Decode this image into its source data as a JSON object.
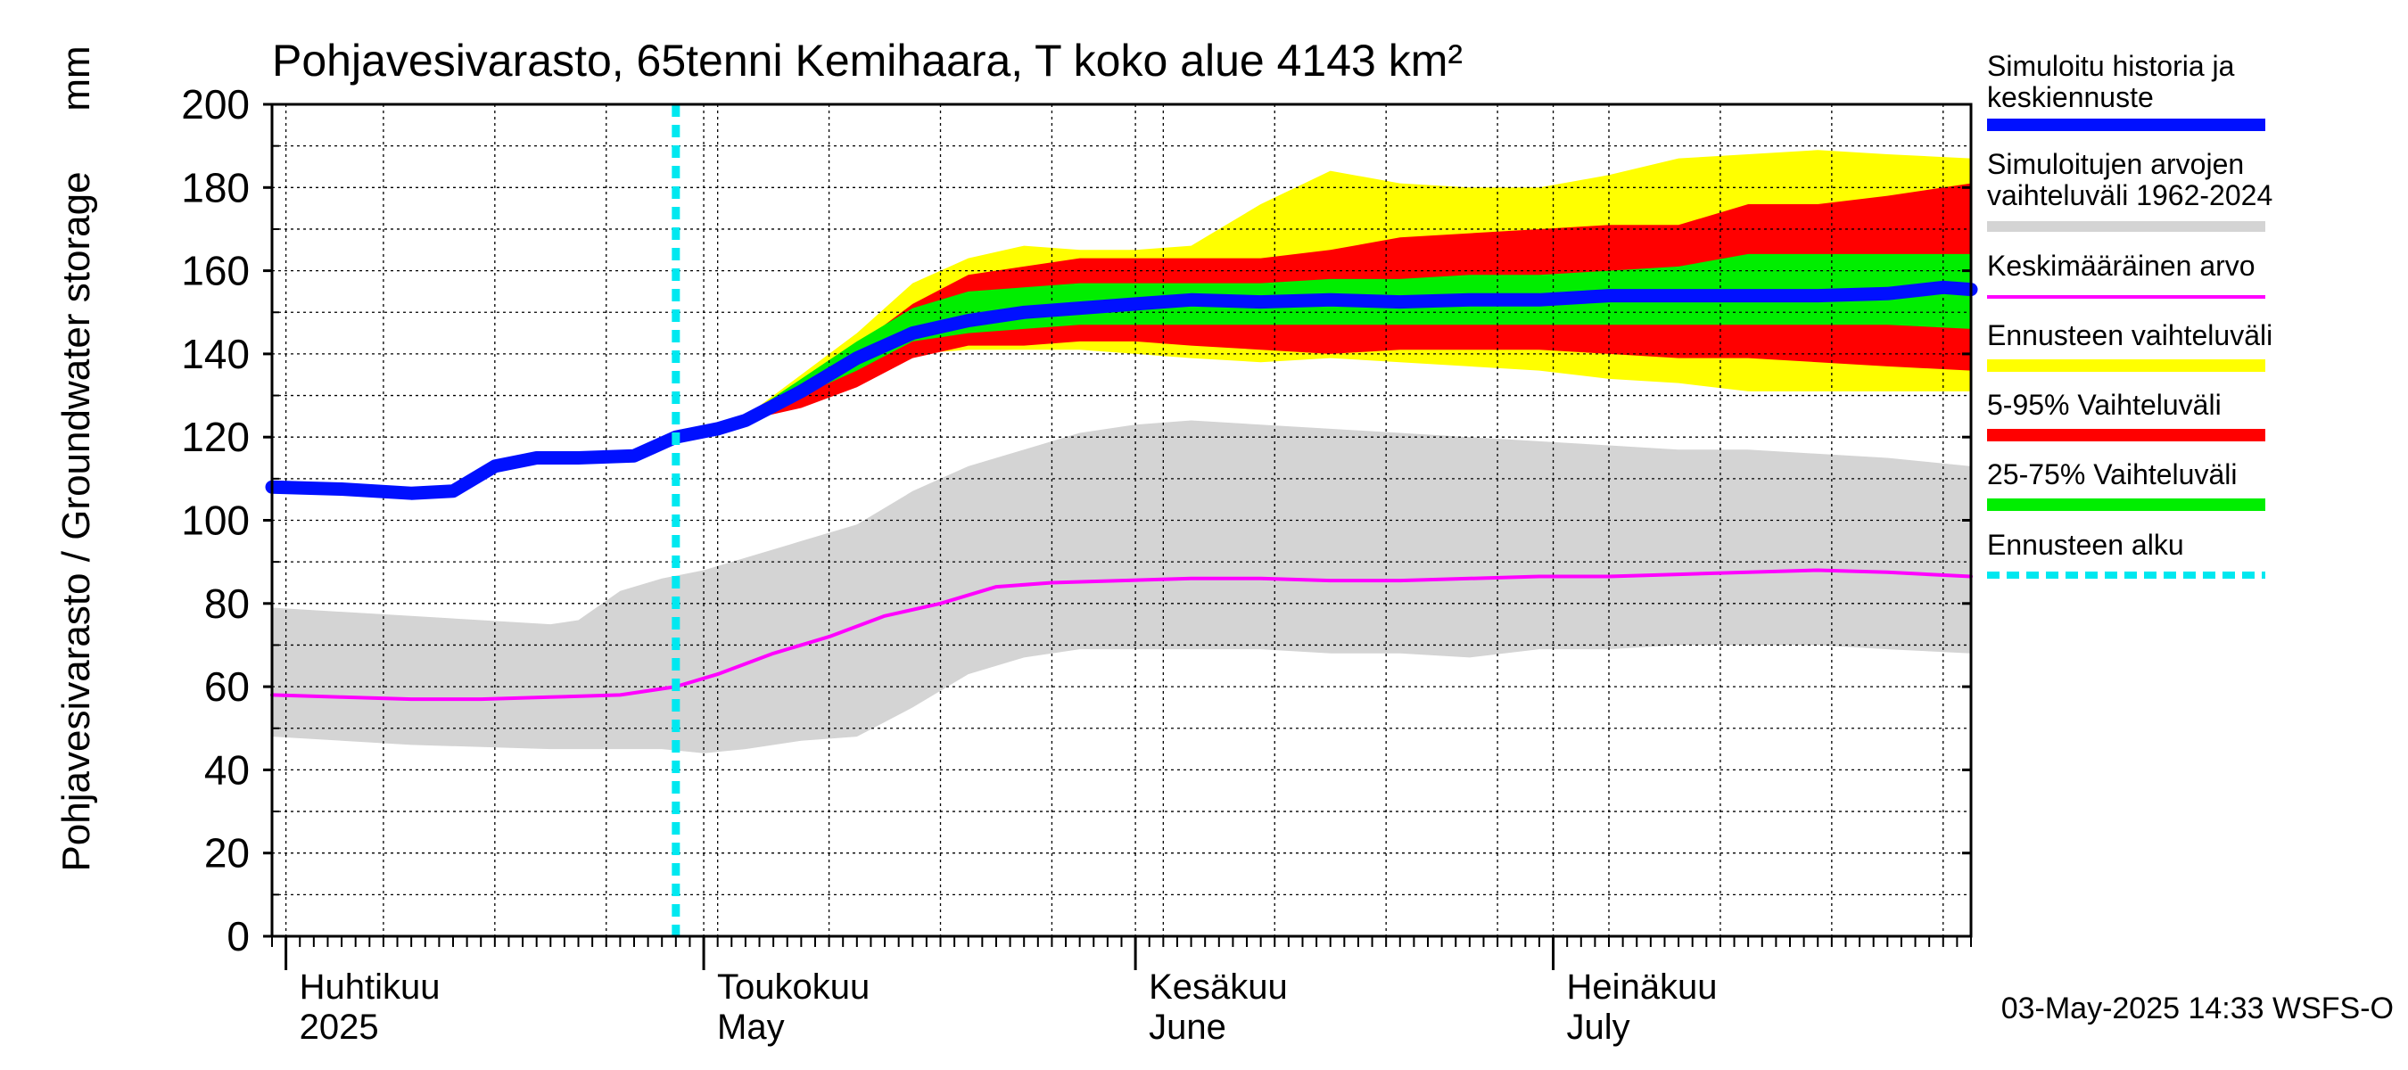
{
  "chart_data": {
    "type": "area",
    "title": "Pohjavesivarasto, 65tenni Kemihaara, T koko alue 4143 km²",
    "ylabel": "Pohjavesivarasto / Groundwater storage",
    "yunit": "mm",
    "ylim": [
      0,
      200
    ],
    "yticks": [
      0,
      20,
      40,
      60,
      80,
      100,
      120,
      140,
      160,
      180,
      200
    ],
    "xlim": [
      "2025-03-31",
      "2025-07-31"
    ],
    "month_labels": [
      {
        "date": "2025-04-01",
        "fi": "Huhtikuu",
        "en": "2025"
      },
      {
        "date": "2025-05-01",
        "fi": "Toukokuu",
        "en": "May"
      },
      {
        "date": "2025-06-01",
        "fi": "Kesäkuu",
        "en": "June"
      },
      {
        "date": "2025-07-01",
        "fi": "Heinäkuu",
        "en": "July"
      }
    ],
    "forecast_start": "2025-04-29",
    "grid": true,
    "legend_position": "right",
    "legend": [
      {
        "label": "Simuloitu historia ja keskiennuste",
        "color": "#0010ff"
      },
      {
        "label": "Simuloitujen arvojen vaihteluväli 1962-2024",
        "color": "#d4d4d4"
      },
      {
        "label": "Keskimääräinen arvo",
        "color": "#ff00ff"
      },
      {
        "label": "Ennusteen vaihteluväli",
        "color": "#ffff00"
      },
      {
        "label": "5-95% Vaihteluväli",
        "color": "#ff0000"
      },
      {
        "label": "25-75% Vaihteluväli",
        "color": "#00ee00"
      },
      {
        "label": "Ennusteen alku",
        "color": "#00e8f0"
      }
    ],
    "series": [
      {
        "name": "Simuloitujen arvojen vaihteluväli 1962-2024",
        "kind": "band",
        "color": "#d4d4d4",
        "x": [
          "2025-03-31",
          "2025-04-10",
          "2025-04-20",
          "2025-04-22",
          "2025-04-25",
          "2025-04-28",
          "2025-05-01",
          "2025-05-04",
          "2025-05-08",
          "2025-05-12",
          "2025-05-16",
          "2025-05-20",
          "2025-05-24",
          "2025-05-28",
          "2025-06-01",
          "2025-06-05",
          "2025-06-10",
          "2025-06-15",
          "2025-06-20",
          "2025-06-25",
          "2025-06-30",
          "2025-07-05",
          "2025-07-10",
          "2025-07-15",
          "2025-07-20",
          "2025-07-25",
          "2025-07-31"
        ],
        "low": [
          48,
          46,
          45,
          45,
          45,
          45,
          44,
          45,
          47,
          48,
          55,
          63,
          67,
          69,
          69,
          69,
          69,
          68,
          68,
          67,
          69,
          69,
          70,
          70,
          70,
          69,
          68
        ],
        "high": [
          79,
          77,
          75,
          76,
          83,
          86,
          88,
          91,
          95,
          99,
          107,
          113,
          117,
          121,
          123,
          124,
          123,
          122,
          121,
          120,
          119,
          118,
          117,
          117,
          116,
          115,
          113
        ]
      },
      {
        "name": "Ennusteen vaihteluväli",
        "kind": "band",
        "color": "#ffff00",
        "x": [
          "2025-05-04",
          "2025-05-08",
          "2025-05-12",
          "2025-05-16",
          "2025-05-20",
          "2025-05-24",
          "2025-05-28",
          "2025-06-01",
          "2025-06-05",
          "2025-06-10",
          "2025-06-15",
          "2025-06-20",
          "2025-06-25",
          "2025-06-30",
          "2025-07-05",
          "2025-07-10",
          "2025-07-15",
          "2025-07-20",
          "2025-07-25",
          "2025-07-31"
        ],
        "low": [
          124,
          128,
          133,
          140,
          141,
          141,
          141,
          140,
          139,
          138,
          139,
          138,
          137,
          136,
          134,
          133,
          131,
          131,
          131,
          131
        ],
        "high": [
          125,
          135,
          145,
          157,
          163,
          166,
          165,
          165,
          166,
          176,
          184,
          181,
          180,
          180,
          183,
          187,
          188,
          189,
          188,
          187
        ]
      },
      {
        "name": "5-95% Vaihteluväli",
        "kind": "band",
        "color": "#ff0000",
        "x": [
          "2025-05-04",
          "2025-05-08",
          "2025-05-12",
          "2025-05-16",
          "2025-05-20",
          "2025-05-24",
          "2025-05-28",
          "2025-06-01",
          "2025-06-05",
          "2025-06-10",
          "2025-06-15",
          "2025-06-20",
          "2025-06-25",
          "2025-06-30",
          "2025-07-05",
          "2025-07-10",
          "2025-07-15",
          "2025-07-20",
          "2025-07-25",
          "2025-07-31"
        ],
        "low": [
          124,
          127,
          132,
          139,
          142,
          142,
          143,
          143,
          142,
          141,
          140,
          141,
          141,
          141,
          140,
          139,
          139,
          138,
          137,
          136
        ],
        "high": [
          125,
          133,
          142,
          152,
          159,
          161,
          163,
          163,
          163,
          163,
          165,
          168,
          169,
          170,
          171,
          171,
          176,
          176,
          178,
          181
        ]
      },
      {
        "name": "25-75% Vaihteluväli",
        "kind": "band",
        "color": "#00ee00",
        "x": [
          "2025-05-04",
          "2025-05-08",
          "2025-05-12",
          "2025-05-16",
          "2025-05-20",
          "2025-05-24",
          "2025-05-28",
          "2025-06-01",
          "2025-06-05",
          "2025-06-10",
          "2025-06-15",
          "2025-06-20",
          "2025-06-25",
          "2025-06-30",
          "2025-07-05",
          "2025-07-10",
          "2025-07-15",
          "2025-07-20",
          "2025-07-25",
          "2025-07-31"
        ],
        "low": [
          124,
          130,
          136,
          143,
          145,
          146,
          147,
          147,
          147,
          147,
          147,
          147,
          147,
          147,
          147,
          147,
          147,
          147,
          147,
          146
        ],
        "high": [
          125,
          134,
          143,
          151,
          155,
          156,
          157,
          157,
          157,
          157,
          158,
          158,
          159,
          159,
          160,
          161,
          164,
          164,
          164,
          164
        ]
      },
      {
        "name": "Keskimääräinen arvo",
        "kind": "line",
        "color": "#ff00ff",
        "x": [
          "2025-03-31",
          "2025-04-05",
          "2025-04-10",
          "2025-04-15",
          "2025-04-20",
          "2025-04-25",
          "2025-04-29",
          "2025-05-02",
          "2025-05-06",
          "2025-05-10",
          "2025-05-14",
          "2025-05-18",
          "2025-05-22",
          "2025-05-26",
          "2025-05-31",
          "2025-06-05",
          "2025-06-10",
          "2025-06-15",
          "2025-06-20",
          "2025-06-25",
          "2025-06-30",
          "2025-07-05",
          "2025-07-10",
          "2025-07-15",
          "2025-07-20",
          "2025-07-25",
          "2025-07-31"
        ],
        "y": [
          58,
          57.5,
          57,
          57,
          57.5,
          58,
          60,
          63,
          68,
          72,
          77,
          80,
          84,
          85,
          85.5,
          86,
          86,
          85.5,
          85.5,
          86,
          86.5,
          86.5,
          87,
          87.5,
          88,
          87.5,
          86.5
        ]
      },
      {
        "name": "Simuloitu historia ja keskiennuste",
        "kind": "line",
        "color": "#0010ff",
        "x": [
          "2025-03-31",
          "2025-04-05",
          "2025-04-10",
          "2025-04-13",
          "2025-04-16",
          "2025-04-19",
          "2025-04-22",
          "2025-04-26",
          "2025-04-29",
          "2025-05-02",
          "2025-05-04",
          "2025-05-08",
          "2025-05-12",
          "2025-05-16",
          "2025-05-20",
          "2025-05-24",
          "2025-05-28",
          "2025-06-01",
          "2025-06-05",
          "2025-06-10",
          "2025-06-15",
          "2025-06-20",
          "2025-06-25",
          "2025-06-30",
          "2025-07-05",
          "2025-07-10",
          "2025-07-15",
          "2025-07-20",
          "2025-07-25",
          "2025-07-29",
          "2025-07-31"
        ],
        "y": [
          108,
          107.5,
          106.5,
          107,
          113,
          115,
          115,
          115.5,
          120,
          122,
          124,
          131,
          139,
          145,
          148,
          150,
          151,
          152,
          153,
          152.5,
          153,
          152.5,
          153,
          153,
          154,
          154,
          154,
          154,
          154.5,
          156,
          155.5
        ]
      }
    ]
  },
  "footer": {
    "timestamp": "03-May-2025 14:33 WSFS-O"
  }
}
